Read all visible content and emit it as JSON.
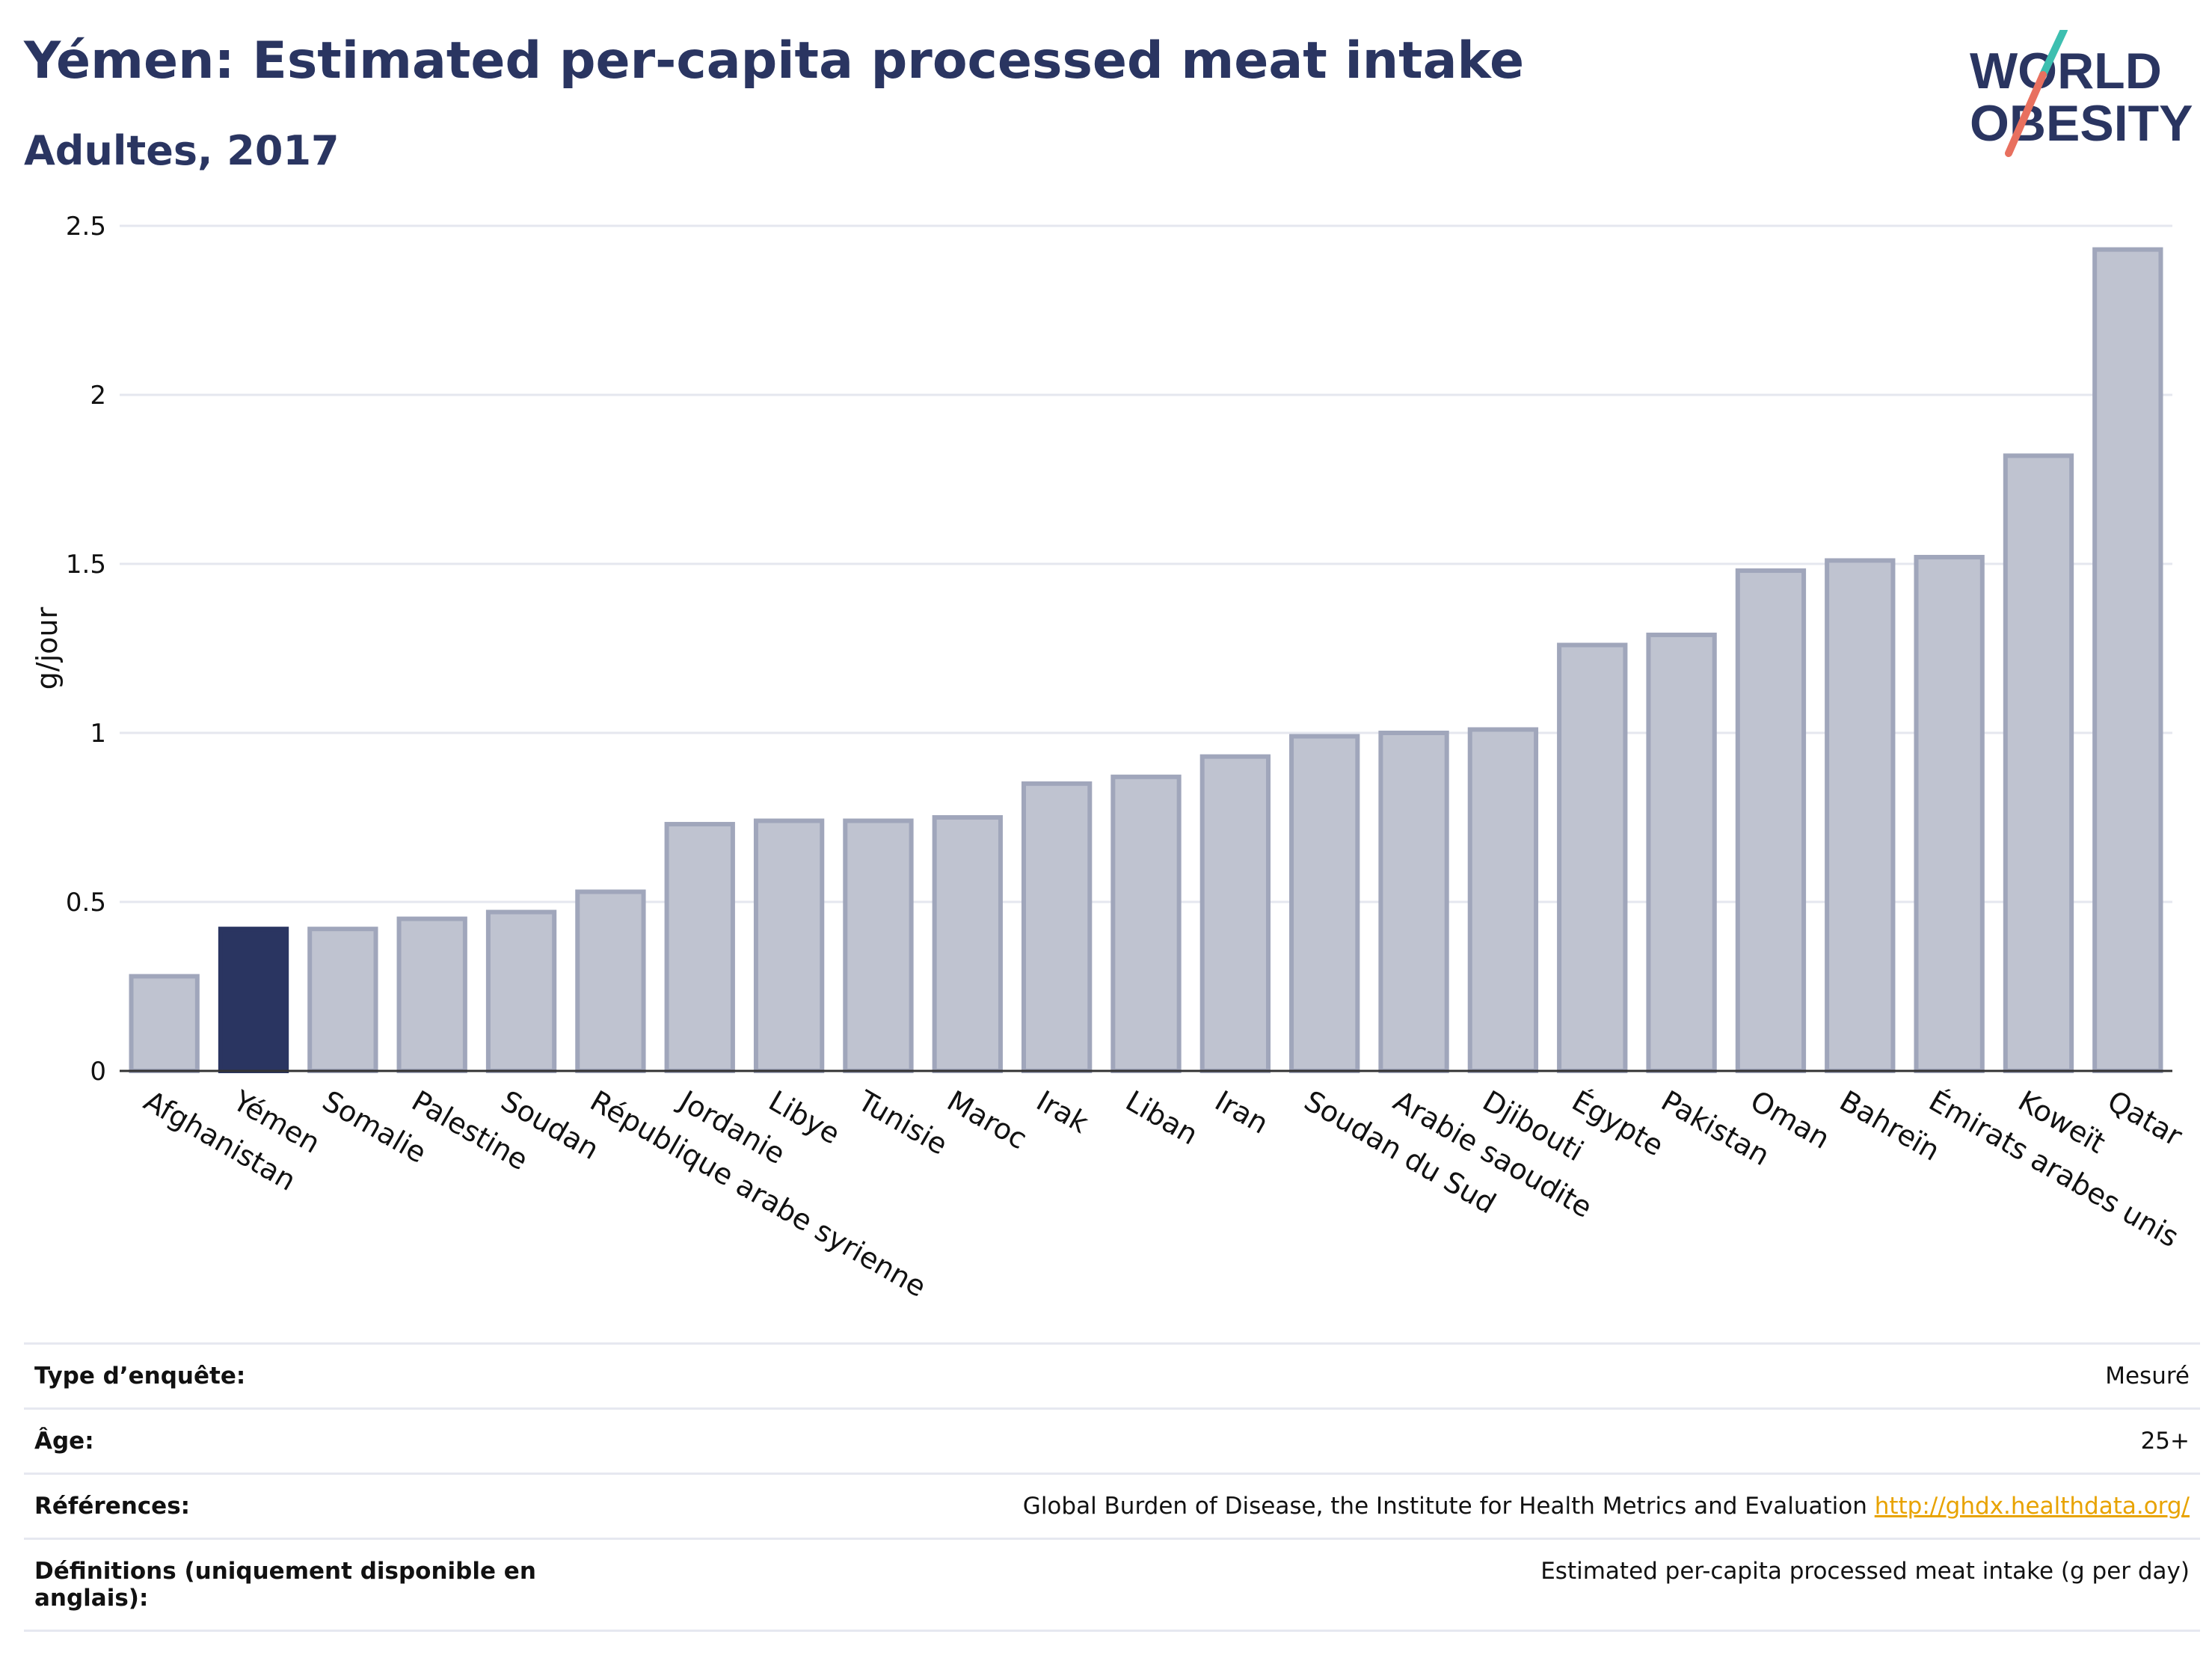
{
  "header": {
    "title": "Yémen: Estimated per-capita processed meat intake",
    "subtitle": "Adultes, 2017"
  },
  "logo": {
    "line1": "WORLD",
    "line2": "OBESITY",
    "colors": {
      "text": "#2a3561",
      "slash_teal": "#3dbfb0",
      "slash_coral": "#e8705f"
    }
  },
  "chart_data": {
    "type": "bar",
    "ylabel": "g/jour",
    "ylim": [
      0,
      2.5
    ],
    "yticks": [
      0,
      0.5,
      1,
      1.5,
      2,
      2.5
    ],
    "ytick_labels": [
      "0",
      "0.5",
      "1",
      "1.5",
      "2",
      "2.5"
    ],
    "grid": true,
    "highlight": "Yémen",
    "colors": {
      "bar": "#bfc3d0",
      "bar_edge": "#a0a6bb",
      "highlight": "#2a3561",
      "grid": "#e5e7ef"
    },
    "categories": [
      "Afghanistan",
      "Yémen",
      "Somalie",
      "Palestine",
      "Soudan",
      "République arabe syrienne",
      "Jordanie",
      "Libye",
      "Tunisie",
      "Maroc",
      "Irak",
      "Liban",
      "Iran",
      "Soudan du Sud",
      "Arabie saoudite",
      "Djibouti",
      "Égypte",
      "Pakistan",
      "Oman",
      "Bahreïn",
      "Émirats arabes unis",
      "Koweït",
      "Qatar"
    ],
    "values": [
      0.28,
      0.42,
      0.42,
      0.45,
      0.47,
      0.53,
      0.73,
      0.74,
      0.74,
      0.75,
      0.85,
      0.87,
      0.93,
      0.99,
      1.0,
      1.01,
      1.26,
      1.29,
      1.48,
      1.51,
      1.52,
      1.82,
      2.43
    ]
  },
  "meta": {
    "rows": [
      {
        "key": "Type d’enquête:",
        "value": "Mesuré"
      },
      {
        "key": "Âge:",
        "value": "25+"
      },
      {
        "key": "Références:",
        "value": "Global Burden of Disease, the Institute for Health Metrics and Evaluation",
        "link": "http://ghdx.healthdata.org/"
      },
      {
        "key": "Définitions (uniquement disponible en anglais):",
        "value": "Estimated per-capita processed meat intake (g per day)"
      }
    ]
  }
}
